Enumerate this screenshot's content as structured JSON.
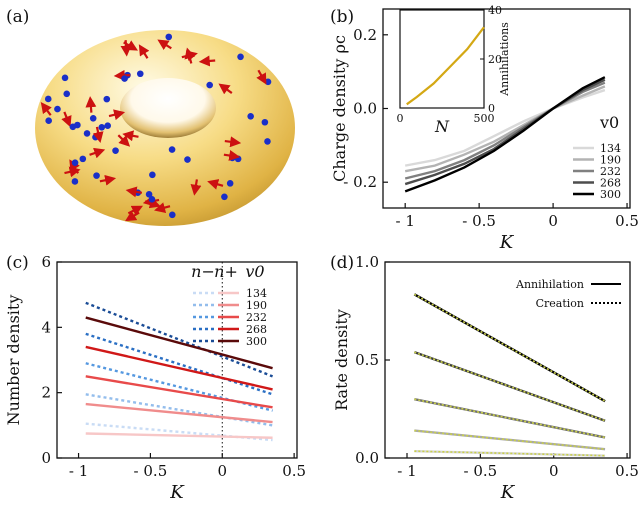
{
  "panels": {
    "a": {
      "label": "(a)"
    },
    "b": {
      "label": "(b)"
    },
    "c": {
      "label": "(c)"
    },
    "d": {
      "label": "(d)"
    }
  },
  "colors": {
    "torus_light": "#fff7d6",
    "torus_mid": "#f3cf6a",
    "torus_dark": "#8a6a22",
    "defect_plus": "#1a2fc8",
    "defect_minus": "#cc1111",
    "inset_line": "#d4a814",
    "creation_overlay": "#c9d04a"
  },
  "chart_data": [
    {
      "panel": "b",
      "type": "line",
      "xlabel": "K",
      "ylabel": "Charge density  ρc",
      "xlim": [
        -1.15,
        0.52
      ],
      "ylim": [
        -0.27,
        0.27
      ],
      "xticks": [
        -1,
        -0.5,
        0,
        0.5
      ],
      "xtick_labels": [
        "- 1",
        "- 0.5",
        "0",
        "0.5"
      ],
      "yticks": [
        -0.2,
        0.0,
        0.2
      ],
      "ytick_labels": [
        "- 0.2",
        "0.0",
        "0.2"
      ],
      "legend_title": "v0",
      "legend_position": "bottom-right",
      "x": [
        -1.0,
        -0.8,
        -0.6,
        -0.4,
        -0.2,
        0.0,
        0.2,
        0.35
      ],
      "series": [
        {
          "name": "134",
          "color": "#d9d9d9",
          "values": [
            -0.155,
            -0.14,
            -0.115,
            -0.075,
            -0.035,
            0.0,
            0.03,
            0.05
          ]
        },
        {
          "name": "190",
          "color": "#b3b3b3",
          "values": [
            -0.17,
            -0.155,
            -0.125,
            -0.09,
            -0.045,
            0.0,
            0.035,
            0.06
          ]
        },
        {
          "name": "232",
          "color": "#808080",
          "values": [
            -0.19,
            -0.17,
            -0.14,
            -0.1,
            -0.05,
            0.0,
            0.045,
            0.07
          ]
        },
        {
          "name": "268",
          "color": "#4d4d4d",
          "values": [
            -0.205,
            -0.18,
            -0.15,
            -0.11,
            -0.055,
            0.0,
            0.05,
            0.078
          ]
        },
        {
          "name": "300",
          "color": "#000000",
          "values": [
            -0.225,
            -0.195,
            -0.16,
            -0.115,
            -0.06,
            0.0,
            0.055,
            0.085
          ]
        }
      ],
      "inset": {
        "type": "line",
        "xlabel": "N",
        "ylabel": "Annihilations",
        "xlim": [
          0,
          500
        ],
        "ylim": [
          0,
          40
        ],
        "xticks": [
          0,
          500
        ],
        "xtick_labels": [
          "0",
          "500"
        ],
        "yticks": [
          0,
          20,
          40
        ],
        "ytick_labels": [
          "0",
          "20",
          "40"
        ],
        "x": [
          40,
          100,
          200,
          300,
          400,
          500
        ],
        "values": [
          1.5,
          4.5,
          10,
          17,
          24,
          33
        ]
      }
    },
    {
      "panel": "c",
      "type": "line",
      "xlabel": "K",
      "ylabel": "Number density",
      "xlim": [
        -1.15,
        0.52
      ],
      "ylim": [
        0,
        6
      ],
      "xticks": [
        -1,
        -0.5,
        0,
        0.5
      ],
      "xtick_labels": [
        "- 1",
        "- 0.5",
        "0",
        "0.5"
      ],
      "yticks": [
        0,
        2,
        4,
        6
      ],
      "ytick_labels": [
        "0",
        "2",
        "4",
        "6"
      ],
      "legend_headers": [
        "n−",
        "n+",
        "v0"
      ],
      "legend_position": "top-right",
      "vline_x": 0,
      "x": [
        -0.95,
        0.35
      ],
      "series": [
        {
          "name": "134",
          "kind": "n-",
          "color": "#c9dcf5",
          "values": [
            1.05,
            0.55
          ]
        },
        {
          "name": "134",
          "kind": "n+",
          "color": "#f7c7c7",
          "values": [
            0.75,
            0.62
          ]
        },
        {
          "name": "190",
          "kind": "n-",
          "color": "#93bdec",
          "values": [
            1.95,
            1.0
          ]
        },
        {
          "name": "190",
          "kind": "n+",
          "color": "#f08c8c",
          "values": [
            1.65,
            1.1
          ]
        },
        {
          "name": "232",
          "kind": "n-",
          "color": "#5598e0",
          "values": [
            2.9,
            1.45
          ]
        },
        {
          "name": "232",
          "kind": "n+",
          "color": "#e84a4a",
          "values": [
            2.5,
            1.55
          ]
        },
        {
          "name": "268",
          "kind": "n-",
          "color": "#2a6fc4",
          "values": [
            3.8,
            1.95
          ]
        },
        {
          "name": "268",
          "kind": "n+",
          "color": "#d01818",
          "values": [
            3.4,
            2.1
          ]
        },
        {
          "name": "300",
          "kind": "n-",
          "color": "#1a4c96",
          "values": [
            4.75,
            2.5
          ]
        },
        {
          "name": "300",
          "kind": "n+",
          "color": "#5a0a0a",
          "values": [
            4.3,
            2.75
          ]
        }
      ]
    },
    {
      "panel": "d",
      "type": "line",
      "xlabel": "K",
      "ylabel": "Rate density",
      "xlim": [
        -1.15,
        0.52
      ],
      "ylim": [
        0,
        1.0
      ],
      "xticks": [
        -1,
        -0.5,
        0,
        0.5
      ],
      "xtick_labels": [
        "- 1",
        "- 0.5",
        "0",
        "0.5"
      ],
      "yticks": [
        0,
        0.5,
        1.0
      ],
      "ytick_labels": [
        "0.0",
        "0.5",
        "1.0"
      ],
      "legend_position": "top-right",
      "legend": [
        "Annihilation",
        "Creation"
      ],
      "x": [
        -0.95,
        0.35
      ],
      "series": [
        {
          "color": "#d6d6d6",
          "values": [
            0.035,
            0.012
          ]
        },
        {
          "color": "#a8a8a8",
          "values": [
            0.14,
            0.045
          ]
        },
        {
          "color": "#6e6e6e",
          "values": [
            0.3,
            0.105
          ]
        },
        {
          "color": "#3a3a3a",
          "values": [
            0.54,
            0.19
          ]
        },
        {
          "color": "#000000",
          "values": [
            0.835,
            0.29
          ]
        }
      ]
    }
  ]
}
